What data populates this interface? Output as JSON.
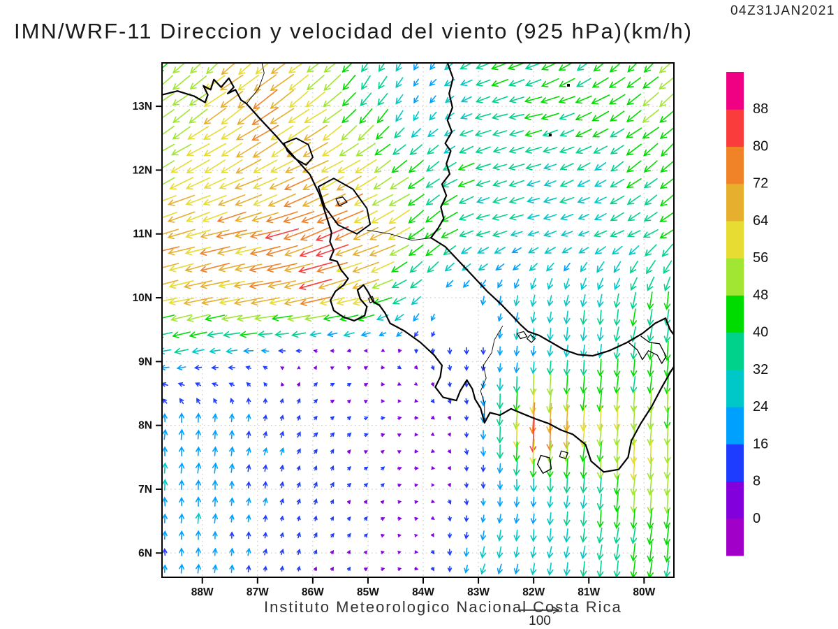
{
  "header": {
    "timestamp": "04Z31JAN2021",
    "title": "IMN/WRF-11 Direccion y velocidad del viento (925 hPa)(km/h)"
  },
  "footer": {
    "caption": "Instituto Meteorologico Nacional Costa Rica",
    "reference_label": "100"
  },
  "chart_data": {
    "type": "quiver",
    "title": "IMN/WRF-11 Direccion y velocidad del viento (925 hPa)(km/h)",
    "timestamp": "04Z31JAN2021",
    "model": "IMN/WRF-11",
    "variable": "Direccion y velocidad del viento",
    "level": "925 hPa",
    "units": "km/h",
    "lon_range": [
      -88.73,
      -79.46
    ],
    "lat_range": [
      5.62,
      13.68
    ],
    "grid_on": true,
    "x_ticks": {
      "values": [
        -88,
        -87,
        -86,
        -85,
        -84,
        -83,
        -82,
        -81,
        -80
      ],
      "labels": [
        "88W",
        "87W",
        "86W",
        "85W",
        "84W",
        "83W",
        "82W",
        "81W",
        "80W"
      ]
    },
    "y_ticks": {
      "values": [
        13,
        12,
        11,
        10,
        9,
        8,
        7,
        6
      ],
      "labels": [
        "13N",
        "12N",
        "11N",
        "10N",
        "9N",
        "8N",
        "7N",
        "6N"
      ]
    },
    "reference_vector": {
      "label": "100",
      "value_kmh": 100
    },
    "speed_levels": [
      0,
      8,
      16,
      24,
      32,
      40,
      48,
      56,
      64,
      72,
      80,
      88
    ],
    "speed_colors": [
      "#A000C8",
      "#8200DC",
      "#1E3CFF",
      "#00A0FF",
      "#00C8C8",
      "#00D28C",
      "#00DC00",
      "#A0E632",
      "#E6DC32",
      "#E6AF2D",
      "#F08228",
      "#FA3C3C",
      "#F00082"
    ],
    "legend_position": "right",
    "wind_grid": {
      "comment": "u eastward km/h, v northward km/h, rows = lats (descending)",
      "lons": [
        -89,
        -88,
        -87,
        -86,
        -85,
        -84,
        -83,
        -82,
        -81,
        -80,
        -79
      ],
      "lats": [
        14,
        13,
        12,
        11,
        10,
        9,
        8,
        7,
        6,
        5
      ],
      "u": [
        [
          -28,
          -40,
          -45,
          -42,
          -20,
          -12,
          -35,
          -40,
          -30,
          -30,
          -38
        ],
        [
          -38,
          -45,
          -60,
          -48,
          -25,
          -8,
          -32,
          -40,
          -40,
          -36,
          -40
        ],
        [
          -50,
          -52,
          -56,
          -60,
          -48,
          -32,
          -35,
          -33,
          -28,
          -32,
          -35
        ],
        [
          -62,
          -65,
          -70,
          -78,
          -65,
          -38,
          -33,
          -28,
          -27,
          -32,
          -33
        ],
        [
          -64,
          -64,
          -68,
          -72,
          -57,
          -15,
          -5,
          -5,
          -5,
          -8,
          -5
        ],
        [
          -24,
          -20,
          -12,
          5,
          6,
          4,
          0,
          -2,
          -3,
          -5,
          -2
        ],
        [
          2,
          2,
          4,
          7,
          7,
          6,
          0,
          -5,
          -5,
          -3,
          -2
        ],
        [
          0,
          1,
          2,
          4,
          6,
          6,
          1,
          -1,
          -3,
          -4,
          -3
        ],
        [
          0,
          1,
          2,
          4,
          5,
          5,
          -6,
          -4,
          -5,
          -6,
          -5
        ],
        [
          0,
          1,
          2,
          4,
          5,
          5,
          -6,
          -4,
          -5,
          -6,
          -5
        ]
      ],
      "v": [
        [
          -28,
          -35,
          -40,
          -35,
          -25,
          -18,
          -18,
          -20,
          -25,
          -30,
          -40
        ],
        [
          -30,
          -32,
          -44,
          -35,
          -35,
          -16,
          -10,
          -10,
          -18,
          -28,
          -36
        ],
        [
          -28,
          -28,
          -30,
          -30,
          -30,
          -25,
          -12,
          -10,
          -15,
          -26,
          -32
        ],
        [
          -18,
          -18,
          -15,
          -30,
          -28,
          -30,
          -10,
          -8,
          -10,
          -18,
          -28
        ],
        [
          -15,
          -14,
          -12,
          -16,
          -16,
          -18,
          -18,
          -26,
          -30,
          -38,
          -42
        ],
        [
          -4,
          -5,
          3,
          4,
          2,
          -8,
          -14,
          -24,
          -33,
          -40,
          -43
        ],
        [
          22,
          22,
          16,
          9,
          3,
          0,
          -15,
          -85,
          -58,
          -55,
          -48
        ],
        [
          22,
          23,
          15,
          11,
          6,
          1,
          -13,
          -25,
          -36,
          -55,
          -45
        ],
        [
          17,
          19,
          13,
          9,
          4,
          -2,
          -24,
          -26,
          -33,
          -42,
          -43
        ],
        [
          17,
          19,
          13,
          9,
          4,
          -2,
          -24,
          -26,
          -33,
          -42,
          -43
        ]
      ]
    },
    "terrain_mask": [
      {
        "lon": -83.25,
        "lat": 9.6,
        "r": 0.42
      },
      {
        "lon": -83.75,
        "lat": 9.98,
        "r": 0.28
      }
    ]
  },
  "geography": {
    "coastlines": [
      {
        "name": "pacific-mainland-coast",
        "w": 2.2,
        "closed": false,
        "pts": [
          [
            -88.73,
            13.18
          ],
          [
            -88.45,
            13.24
          ],
          [
            -88.15,
            13.16
          ],
          [
            -87.95,
            13.06
          ],
          [
            -87.9,
            13.18
          ],
          [
            -87.98,
            13.32
          ],
          [
            -87.85,
            13.26
          ],
          [
            -87.79,
            13.42
          ],
          [
            -87.66,
            13.3
          ],
          [
            -87.52,
            13.44
          ],
          [
            -87.43,
            13.3
          ],
          [
            -87.54,
            13.2
          ],
          [
            -87.4,
            13.26
          ],
          [
            -87.3,
            13.1
          ],
          [
            -87.2,
            13.04
          ],
          [
            -86.95,
            12.8
          ],
          [
            -86.65,
            12.52
          ],
          [
            -86.35,
            12.22
          ],
          [
            -86.05,
            11.93
          ],
          [
            -85.88,
            11.62
          ],
          [
            -85.77,
            11.32
          ],
          [
            -85.66,
            11.02
          ],
          [
            -85.69,
            10.88
          ],
          [
            -85.62,
            10.74
          ],
          [
            -85.69,
            10.6
          ],
          [
            -85.56,
            10.57
          ],
          [
            -85.49,
            10.44
          ],
          [
            -85.36,
            10.3
          ],
          [
            -85.44,
            10.2
          ],
          [
            -85.59,
            10.1
          ],
          [
            -85.68,
            9.96
          ],
          [
            -85.62,
            9.8
          ],
          [
            -85.45,
            9.7
          ],
          [
            -85.25,
            9.64
          ],
          [
            -85.06,
            9.72
          ],
          [
            -85.02,
            9.86
          ],
          [
            -85.14,
            9.98
          ],
          [
            -85.19,
            10.12
          ],
          [
            -85.08,
            10.2
          ],
          [
            -84.99,
            10.08
          ],
          [
            -84.91,
            9.94
          ],
          [
            -84.79,
            9.88
          ],
          [
            -84.69,
            9.76
          ],
          [
            -84.6,
            9.6
          ],
          [
            -84.34,
            9.48
          ],
          [
            -84.05,
            9.3
          ],
          [
            -83.8,
            9.1
          ],
          [
            -83.66,
            8.94
          ],
          [
            -83.69,
            8.76
          ],
          [
            -83.78,
            8.6
          ],
          [
            -83.64,
            8.44
          ],
          [
            -83.4,
            8.39
          ],
          [
            -83.33,
            8.54
          ],
          [
            -83.21,
            8.71
          ],
          [
            -83.11,
            8.57
          ],
          [
            -83.06,
            8.41
          ],
          [
            -82.96,
            8.27
          ],
          [
            -82.89,
            8.04
          ],
          [
            -82.79,
            8.2
          ],
          [
            -82.61,
            8.16
          ],
          [
            -82.41,
            8.26
          ],
          [
            -82.19,
            8.18
          ],
          [
            -81.96,
            8.1
          ],
          [
            -81.73,
            8.03
          ],
          [
            -81.51,
            7.93
          ],
          [
            -81.29,
            7.86
          ],
          [
            -81.06,
            7.7
          ],
          [
            -80.96,
            7.44
          ],
          [
            -80.73,
            7.27
          ],
          [
            -80.46,
            7.31
          ],
          [
            -80.29,
            7.5
          ],
          [
            -80.23,
            7.76
          ],
          [
            -80.06,
            8.03
          ],
          [
            -79.86,
            8.3
          ],
          [
            -79.69,
            8.58
          ],
          [
            -79.52,
            8.84
          ],
          [
            -79.46,
            8.92
          ]
        ]
      },
      {
        "name": "caribbean-coast",
        "w": 2.2,
        "closed": false,
        "pts": [
          [
            -83.56,
            13.68
          ],
          [
            -83.46,
            13.44
          ],
          [
            -83.53,
            13.2
          ],
          [
            -83.47,
            12.98
          ],
          [
            -83.56,
            12.78
          ],
          [
            -83.48,
            12.6
          ],
          [
            -83.6,
            12.42
          ],
          [
            -83.5,
            12.3
          ],
          [
            -83.58,
            12.1
          ],
          [
            -83.52,
            11.94
          ],
          [
            -83.66,
            11.78
          ],
          [
            -83.58,
            11.6
          ],
          [
            -83.68,
            11.42
          ],
          [
            -83.63,
            11.24
          ],
          [
            -83.73,
            11.09
          ],
          [
            -83.86,
            10.94
          ],
          [
            -83.6,
            10.8
          ],
          [
            -83.36,
            10.58
          ],
          [
            -83.1,
            10.34
          ],
          [
            -82.84,
            10.1
          ],
          [
            -82.59,
            9.9
          ],
          [
            -82.37,
            9.7
          ],
          [
            -82.24,
            9.58
          ],
          [
            -82.1,
            9.47
          ],
          [
            -81.9,
            9.41
          ],
          [
            -81.7,
            9.31
          ],
          [
            -81.46,
            9.19
          ],
          [
            -81.2,
            9.11
          ],
          [
            -80.93,
            9.09
          ],
          [
            -80.63,
            9.17
          ],
          [
            -80.33,
            9.29
          ],
          [
            -80.03,
            9.44
          ],
          [
            -79.8,
            9.6
          ],
          [
            -79.61,
            9.68
          ],
          [
            -79.53,
            9.5
          ],
          [
            -79.46,
            9.42
          ]
        ]
      },
      {
        "name": "lake-managua",
        "w": 2,
        "closed": true,
        "pts": [
          [
            -86.52,
            12.42
          ],
          [
            -86.3,
            12.5
          ],
          [
            -86.08,
            12.4
          ],
          [
            -86.0,
            12.2
          ],
          [
            -86.12,
            12.08
          ],
          [
            -86.32,
            12.18
          ],
          [
            -86.46,
            12.3
          ]
        ]
      },
      {
        "name": "lake-nicaragua",
        "w": 2,
        "closed": true,
        "pts": [
          [
            -85.9,
            11.74
          ],
          [
            -85.62,
            11.87
          ],
          [
            -85.27,
            11.7
          ],
          [
            -85.02,
            11.4
          ],
          [
            -84.96,
            11.15
          ],
          [
            -85.2,
            11.0
          ],
          [
            -85.54,
            11.14
          ],
          [
            -85.78,
            11.42
          ]
        ]
      },
      {
        "name": "ometepe-island",
        "w": 1.4,
        "closed": true,
        "pts": [
          [
            -85.58,
            11.55
          ],
          [
            -85.46,
            11.58
          ],
          [
            -85.38,
            11.5
          ],
          [
            -85.52,
            11.44
          ]
        ]
      },
      {
        "name": "canal-zone-lakes",
        "w": 1.3,
        "closed": false,
        "pts": [
          [
            -80.28,
            9.3
          ],
          [
            -80.12,
            9.18
          ],
          [
            -80.03,
            9.03
          ],
          [
            -79.92,
            9.17
          ],
          [
            -79.76,
            9.1
          ],
          [
            -79.68,
            8.97
          ],
          [
            -79.6,
            9.08
          ],
          [
            -79.72,
            9.28
          ],
          [
            -79.9,
            9.3
          ],
          [
            -80.06,
            9.4
          ]
        ]
      },
      {
        "name": "coiba-island",
        "w": 1.4,
        "closed": true,
        "pts": [
          [
            -81.87,
            7.53
          ],
          [
            -81.71,
            7.49
          ],
          [
            -81.68,
            7.32
          ],
          [
            -81.83,
            7.25
          ],
          [
            -81.93,
            7.39
          ]
        ]
      },
      {
        "name": "cebaco-island",
        "w": 1.2,
        "closed": true,
        "pts": [
          [
            -81.5,
            7.6
          ],
          [
            -81.38,
            7.57
          ],
          [
            -81.42,
            7.48
          ],
          [
            -81.53,
            7.51
          ]
        ]
      },
      {
        "name": "bocas-island-1",
        "w": 1.2,
        "closed": true,
        "pts": [
          [
            -82.3,
            9.44
          ],
          [
            -82.18,
            9.47
          ],
          [
            -82.12,
            9.39
          ],
          [
            -82.24,
            9.36
          ]
        ]
      },
      {
        "name": "bocas-island-2",
        "w": 1.2,
        "closed": true,
        "pts": [
          [
            -82.06,
            9.42
          ],
          [
            -81.97,
            9.36
          ],
          [
            -82.04,
            9.3
          ],
          [
            -82.12,
            9.36
          ]
        ]
      },
      {
        "name": "gulf-of-nicoya-island",
        "w": 1.2,
        "closed": true,
        "pts": [
          [
            -84.99,
            9.99
          ],
          [
            -84.92,
            10.02
          ],
          [
            -84.89,
            9.95
          ],
          [
            -84.96,
            9.92
          ]
        ]
      }
    ],
    "borders": [
      {
        "name": "border-costa-rica-panama",
        "w": 0.9,
        "pts": [
          [
            -82.56,
            9.56
          ],
          [
            -82.71,
            9.34
          ],
          [
            -82.76,
            9.14
          ],
          [
            -82.91,
            8.94
          ],
          [
            -82.86,
            8.74
          ],
          [
            -82.96,
            8.54
          ],
          [
            -82.89,
            8.34
          ],
          [
            -82.89,
            8.04
          ]
        ]
      },
      {
        "name": "border-nicaragua-costa-rica",
        "w": 0.9,
        "pts": [
          [
            -85.02,
            11.06
          ],
          [
            -84.6,
            11.0
          ],
          [
            -84.2,
            10.9
          ],
          [
            -83.86,
            10.94
          ]
        ]
      },
      {
        "name": "border-honduras-nicaragua",
        "w": 0.9,
        "pts": [
          [
            -87.2,
            13.04
          ],
          [
            -86.98,
            13.28
          ],
          [
            -86.88,
            13.52
          ],
          [
            -86.92,
            13.68
          ]
        ]
      }
    ],
    "island_dots": [
      {
        "name": "providencia-island",
        "lon": -81.37,
        "lat": 13.33
      },
      {
        "name": "san-andres-island",
        "lon": -81.7,
        "lat": 12.55
      }
    ]
  }
}
